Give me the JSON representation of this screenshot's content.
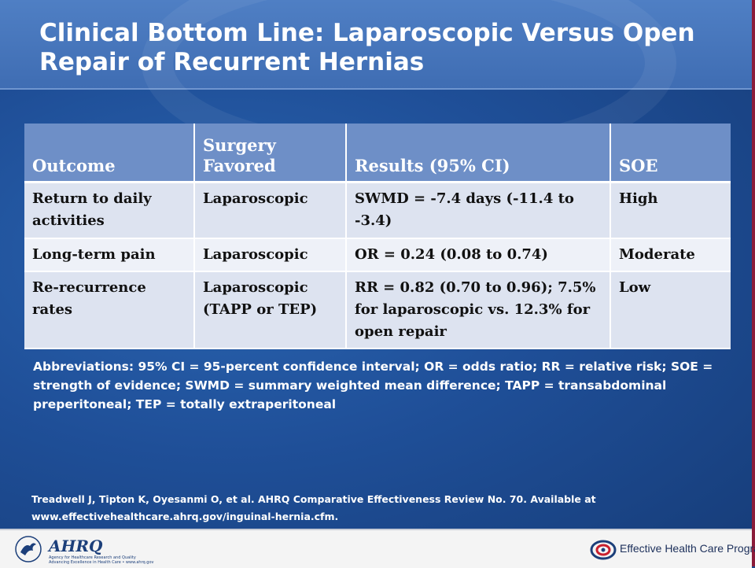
{
  "slide": {
    "title": "Clinical Bottom Line: Laparoscopic Versus Open Repair of Recurrent Hernias"
  },
  "table": {
    "headers": [
      "Outcome",
      "Surgery Favored",
      "Results (95% CI)",
      "SOE"
    ],
    "rows": [
      [
        "Return to daily activities",
        "Laparoscopic",
        "SWMD = -7.4 days (-11.4 to -3.4)",
        "High"
      ],
      [
        "Long-term pain",
        "Laparoscopic",
        "OR = 0.24 (0.08 to 0.74)",
        "Moderate"
      ],
      [
        "Re-recurrence rates",
        "Laparoscopic (TAPP or TEP)",
        "RR = 0.82 (0.70 to 0.96); 7.5% for laparoscopic vs. 12.3% for open repair",
        "Low"
      ]
    ]
  },
  "abbreviations": "Abbreviations: 95% CI = 95-percent confidence interval; OR = odds ratio; RR = relative risk; SOE = strength of evidence; SWMD = summary weighted mean difference; TAPP = transabdominal preperitoneal; TEP = totally extraperitoneal",
  "reference": "Treadwell J, Tipton K, Oyesanmi O, et al. AHRQ Comparative Effectiveness Review No. 70. Available at www.effectivehealthcare.ahrq.gov/inguinal-hernia.cfm.",
  "footer": {
    "ahrq_logo": "AHRQ",
    "ahrq_tagline1": "Agency for Healthcare Research and Quality",
    "ahrq_tagline2": "Advancing Excellence in Health Care • www.ahrq.gov",
    "ehc_program": "Effective Health Care Program",
    "hhs_icon": "hhs-eagle-icon",
    "ehc_icon": "ehc-swirl-icon"
  },
  "colors": {
    "background": "#1f4f98",
    "title_bar": "#4f7fc4",
    "table_header": "#6e8fc7",
    "table_row": "#dde3f0",
    "accent_stripe": "#8b1c3a"
  }
}
